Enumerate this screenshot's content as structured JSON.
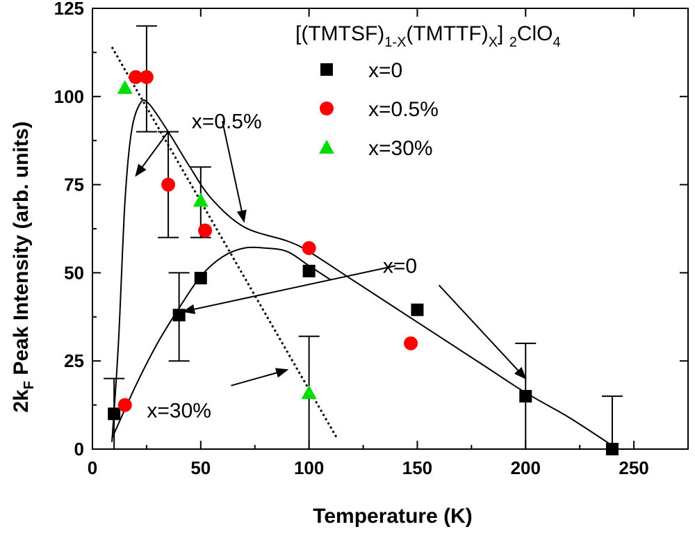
{
  "chart_data": {
    "type": "scatter",
    "title": "",
    "xlabel": "Temperature (K)",
    "ylabel_prefix": "2k",
    "ylabel_sub": "F",
    "ylabel_rest": " Peak Intensity (arb. units)",
    "xlim": [
      0,
      275
    ],
    "ylim": [
      0,
      125
    ],
    "xticks": [
      0,
      50,
      100,
      150,
      200,
      250
    ],
    "xtick_labels": [
      "0",
      "50",
      "100",
      "150",
      "200",
      "250"
    ],
    "yticks": [
      0,
      25,
      50,
      75,
      100,
      125
    ],
    "ytick_labels": [
      "0",
      "25",
      "50",
      "75",
      "100",
      "125"
    ],
    "legend": {
      "title_parts": [
        "[(TMTSF)",
        "1-X",
        "(TMTTF)",
        "X",
        "] ",
        "2",
        "ClO",
        "4"
      ],
      "placement": "top-right"
    },
    "series": [
      {
        "name": "x=0",
        "marker": "square",
        "color": "#000000",
        "points": [
          [
            10,
            10
          ],
          [
            40,
            38
          ],
          [
            50,
            48.5
          ],
          [
            100,
            50.5
          ],
          [
            150,
            39.5
          ],
          [
            200,
            15
          ],
          [
            240,
            0
          ]
        ],
        "errorbars": [
          [
            10,
            0,
            20
          ],
          [
            40,
            25,
            50
          ],
          [
            200,
            0,
            30
          ],
          [
            240,
            0,
            15
          ]
        ]
      },
      {
        "name": "x=0.5%",
        "marker": "circle",
        "color": "#ff0000",
        "points": [
          [
            15,
            12.5
          ],
          [
            20,
            105.5
          ],
          [
            25,
            105.5
          ],
          [
            35,
            75
          ],
          [
            52,
            62
          ],
          [
            100,
            57
          ],
          [
            147,
            30
          ]
        ],
        "errorbars": [
          [
            25,
            90,
            120
          ],
          [
            35,
            60,
            90
          ]
        ]
      },
      {
        "name": "x=30%",
        "marker": "triangle",
        "color": "#00dd00",
        "points": [
          [
            15,
            102.5
          ],
          [
            50,
            70.5
          ],
          [
            100,
            16
          ]
        ],
        "errorbars": [
          [
            50,
            60,
            80
          ],
          [
            100,
            0,
            32
          ]
        ]
      }
    ],
    "curves": [
      {
        "name": "x=0.5% fit",
        "style": "solid",
        "points": [
          [
            9,
            2
          ],
          [
            12,
            30
          ],
          [
            15,
            70
          ],
          [
            18,
            90
          ],
          [
            22,
            98
          ],
          [
            26,
            98
          ],
          [
            35,
            90
          ],
          [
            45,
            80
          ],
          [
            55,
            71
          ],
          [
            70,
            63
          ],
          [
            90,
            59
          ],
          [
            100,
            56
          ],
          [
            120,
            48
          ],
          [
            150,
            36
          ],
          [
            180,
            24
          ],
          [
            200,
            16
          ],
          [
            220,
            9
          ],
          [
            240,
            1
          ]
        ]
      },
      {
        "name": "x=0 fit",
        "style": "solid",
        "points": [
          [
            9,
            3
          ],
          [
            20,
            18
          ],
          [
            30,
            30
          ],
          [
            40,
            40
          ],
          [
            50,
            49
          ],
          [
            60,
            54.5
          ],
          [
            70,
            57
          ],
          [
            80,
            57
          ],
          [
            90,
            56
          ],
          [
            100,
            52
          ],
          [
            110,
            48
          ]
        ]
      },
      {
        "name": "x=30% fit",
        "style": "dotted",
        "points": [
          [
            9,
            114
          ],
          [
            113,
            3
          ]
        ]
      }
    ],
    "annotations": [
      {
        "text": "x=0.5%",
        "at": [
          62,
          91
        ],
        "targets": [
          [
            20,
            77.5
          ],
          [
            70,
            64.5
          ]
        ],
        "source": [
          [
            35,
            90
          ],
          [
            60,
            93
          ]
        ]
      },
      {
        "text": "x=0",
        "at": [
          142,
          50
        ],
        "targets": [
          [
            42,
            39
          ],
          [
            200,
            20
          ]
        ],
        "source": [
          [
            140,
            52
          ],
          [
            160,
            46.5
          ]
        ]
      },
      {
        "text": "x=30%",
        "at": [
          40,
          9
        ],
        "targets": [
          [
            90,
            22.5
          ]
        ],
        "source": [
          [
            64,
            18
          ]
        ]
      }
    ]
  }
}
